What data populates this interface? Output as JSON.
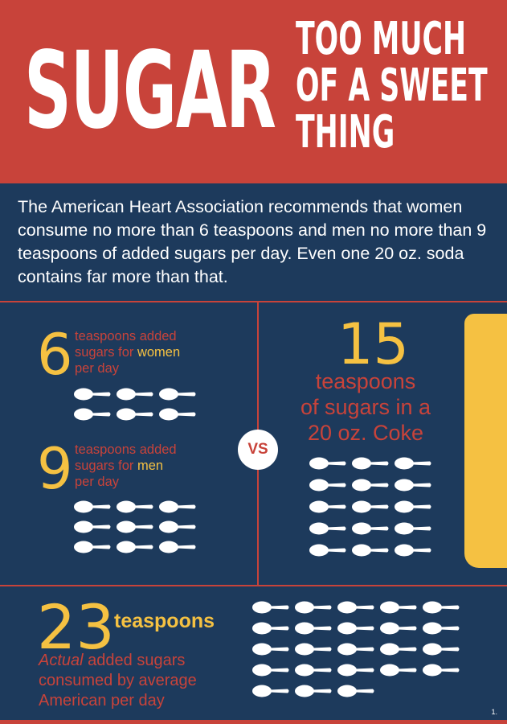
{
  "header": {
    "title": "SUGAR",
    "subtitle_lines": [
      "TOO MUCH",
      "OF A SWEET",
      "THING"
    ]
  },
  "intro": "The American Heart Association recommends that women consume no more than 6 teaspoons and men no more than 9 teaspoons of added sugars per day. Even one 20 oz. soda contains far more than that.",
  "women": {
    "number": "6",
    "line1": "teaspoons added",
    "line2_pre": "sugars for ",
    "line2_highlight": "women",
    "line3": "per day",
    "spoon_count": 6
  },
  "men": {
    "number": "9",
    "line1": "teaspoons added",
    "line2_pre": "sugars for ",
    "line2_highlight": "men",
    "line3": "per day",
    "spoon_count": 9
  },
  "vs": "VS",
  "coke": {
    "number": "15",
    "lines": [
      "teaspoons",
      "of sugars in a",
      "20 oz. Coke"
    ],
    "spoon_count": 15
  },
  "average": {
    "number": "23",
    "unit": "teaspoons",
    "line1_italic": "Actual",
    "line1_rest": " added sugars",
    "line2": "consumed by average",
    "line3": "American per day",
    "spoon_count": 23
  },
  "footnote": "1.",
  "colors": {
    "navy": "#1d3a5c",
    "red": "#c8433a",
    "yellow": "#f5c142",
    "white": "#ffffff"
  }
}
